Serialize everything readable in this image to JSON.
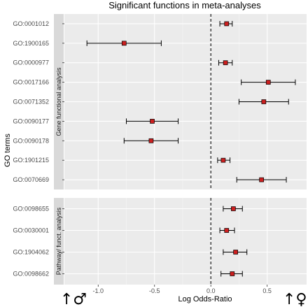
{
  "chart_data": {
    "type": "forest",
    "title": "Significant functions in meta-analyses",
    "xlabel": "Log Odds-Ratio",
    "ylabel": "GO terms",
    "xlim": [
      -1.3,
      0.85
    ],
    "x_ticks": [
      "-1.0",
      "-0.5",
      "0.0",
      "0.5"
    ],
    "x_tick_values": [
      -1.0,
      -0.5,
      0.0,
      0.5
    ],
    "reference_line": 0,
    "grid": true,
    "point_color": "#cc1f1f",
    "panel_bg": "#ebebeb",
    "strip_bg": "#d9d9d9",
    "panels": [
      {
        "name": "Gene functional analysis",
        "rows": [
          {
            "term": "GO:0001012",
            "estimate": 0.14,
            "lower": 0.08,
            "upper": 0.19
          },
          {
            "term": "GO:1900165",
            "estimate": -0.77,
            "lower": -1.1,
            "upper": -0.44
          },
          {
            "term": "GO:0000977",
            "estimate": 0.13,
            "lower": 0.07,
            "upper": 0.19
          },
          {
            "term": "GO:0017166",
            "estimate": 0.51,
            "lower": 0.27,
            "upper": 0.75
          },
          {
            "term": "GO:0071352",
            "estimate": 0.47,
            "lower": 0.25,
            "upper": 0.69
          },
          {
            "term": "GO:0090177",
            "estimate": -0.52,
            "lower": -0.75,
            "upper": -0.29
          },
          {
            "term": "GO:0090178",
            "estimate": -0.53,
            "lower": -0.77,
            "upper": -0.29
          },
          {
            "term": "GO:1901215",
            "estimate": 0.11,
            "lower": 0.06,
            "upper": 0.17
          },
          {
            "term": "GO:0070669",
            "estimate": 0.45,
            "lower": 0.23,
            "upper": 0.67
          }
        ]
      },
      {
        "name": "Pathway/ funct. analysis",
        "rows": [
          {
            "term": "GO:0098655",
            "estimate": 0.2,
            "lower": 0.11,
            "upper": 0.28
          },
          {
            "term": "GO:0030001",
            "estimate": 0.14,
            "lower": 0.08,
            "upper": 0.21
          },
          {
            "term": "GO:1904062",
            "estimate": 0.22,
            "lower": 0.11,
            "upper": 0.32
          },
          {
            "term": "GO:0098662",
            "estimate": 0.19,
            "lower": 0.09,
            "upper": 0.28
          }
        ]
      }
    ],
    "annotations": {
      "left_symbol": "↑♂",
      "right_symbol": "↑♀"
    }
  }
}
